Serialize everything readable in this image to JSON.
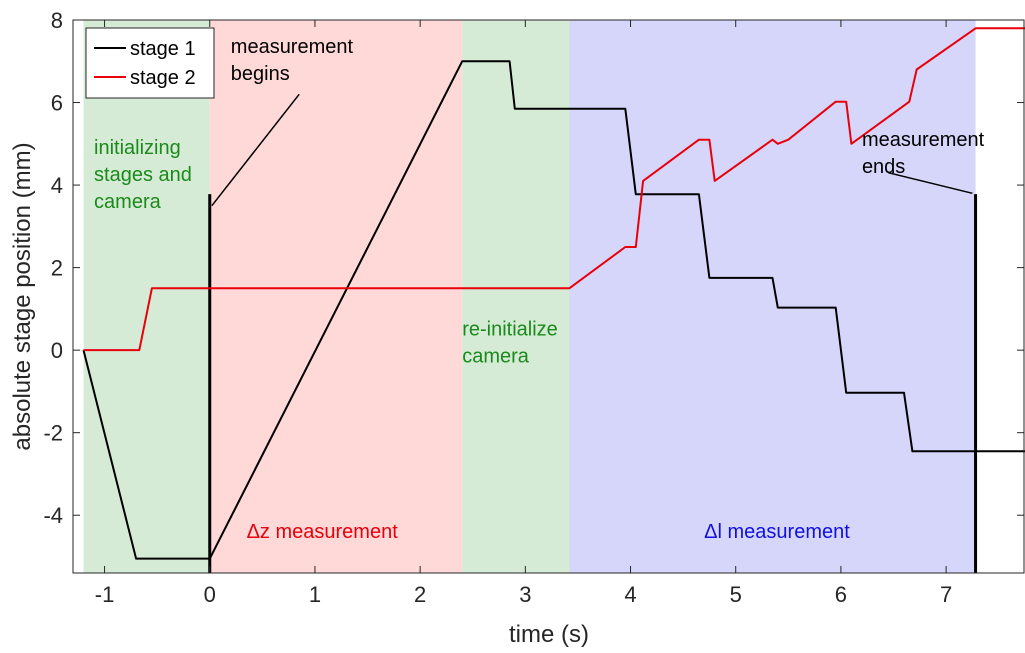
{
  "chart_data": {
    "type": "line",
    "xlabel": "time (s)",
    "ylabel": "absolute stage position (mm)",
    "xlim": [
      -1.3,
      7.75
    ],
    "ylim": [
      -5.4,
      8
    ],
    "x_ticks": [
      -1,
      0,
      1,
      2,
      3,
      4,
      5,
      6,
      7
    ],
    "y_ticks": [
      -4,
      -2,
      0,
      2,
      4,
      6,
      8
    ],
    "x_tick_labels": [
      "-1",
      "0",
      "1",
      "2",
      "3",
      "4",
      "5",
      "6",
      "7"
    ],
    "y_tick_labels": [
      "-4",
      "-2",
      "0",
      "2",
      "4",
      "6",
      "8"
    ],
    "legend_position": "top-left",
    "grid": false,
    "regions": [
      {
        "x0": -1.2,
        "x1": 0.0,
        "color": "#d6ebd6"
      },
      {
        "x0": 0.0,
        "x1": 2.4,
        "color": "#ffd8d8"
      },
      {
        "x0": 2.4,
        "x1": 3.42,
        "color": "#d6ebd6"
      },
      {
        "x0": 3.42,
        "x1": 7.28,
        "color": "#d6d6fa"
      }
    ],
    "series": [
      {
        "name": "stage 1",
        "color": "#000000",
        "x": [
          -1.2,
          -0.7,
          0.0,
          2.4,
          2.85,
          2.9,
          3.95,
          4.05,
          4.65,
          4.75,
          5.35,
          5.4,
          5.95,
          6.05,
          6.6,
          6.68,
          7.75
        ],
        "y": [
          0.0,
          -5.05,
          -5.05,
          7.0,
          7.0,
          5.85,
          5.85,
          3.78,
          3.78,
          1.75,
          1.75,
          1.03,
          1.03,
          -1.03,
          -1.03,
          -2.45,
          -2.45
        ]
      },
      {
        "name": "stage 2",
        "color": "#e8000b",
        "x": [
          -1.2,
          -0.67,
          -0.55,
          3.42,
          3.95,
          4.05,
          4.12,
          4.65,
          4.75,
          4.8,
          5.35,
          5.4,
          5.5,
          5.95,
          6.05,
          6.1,
          6.65,
          6.72,
          7.28,
          7.75
        ],
        "y": [
          0.0,
          0.0,
          1.5,
          1.5,
          2.5,
          2.5,
          4.1,
          5.1,
          5.1,
          4.1,
          5.1,
          5.0,
          5.1,
          6.02,
          6.02,
          5.0,
          6.02,
          6.8,
          7.8,
          7.8
        ]
      }
    ],
    "vlines": [
      {
        "x": 0.0,
        "y0": -5.4,
        "y1": 3.78
      },
      {
        "x": 7.28,
        "y0": -5.4,
        "y1": 3.78
      }
    ],
    "annotations": [
      {
        "lines": [
          "initializing",
          "stages and",
          "camera"
        ],
        "color": "#1a8a1a",
        "x": -1.1,
        "y": 4.75
      },
      {
        "lines": [
          "measurement",
          "begins"
        ],
        "color": "#000000",
        "x": 0.2,
        "y": 7.2
      },
      {
        "lines": [
          "re-initialize",
          "camera"
        ],
        "color": "#1a8a1a",
        "x": 2.4,
        "y": 0.35
      },
      {
        "lines": [
          "Δz measurement"
        ],
        "color": "#e8000b",
        "x": 0.35,
        "y": -4.55
      },
      {
        "lines": [
          "Δl measurement"
        ],
        "color": "#1010e0",
        "x": 4.7,
        "y": -4.55
      },
      {
        "lines": [
          "measurement",
          "ends"
        ],
        "color": "#000000",
        "x": 6.2,
        "y": 4.95
      }
    ],
    "leaders": [
      {
        "x0": 0.02,
        "y0": 3.5,
        "x1": 0.85,
        "y1": 6.2
      },
      {
        "x0": 7.25,
        "y0": 3.8,
        "x1": 6.45,
        "y1": 4.3
      }
    ]
  }
}
